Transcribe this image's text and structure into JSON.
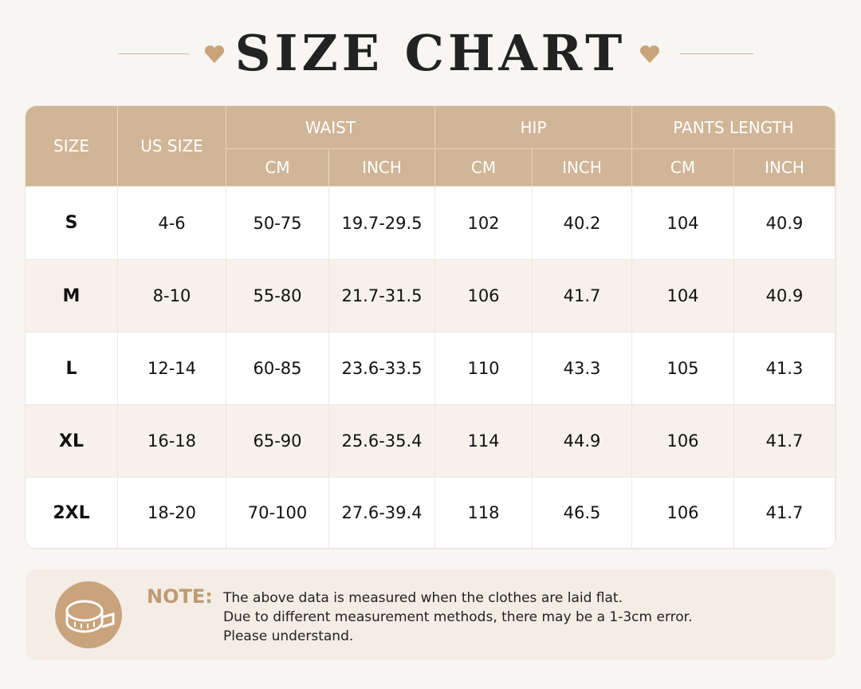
{
  "header": {
    "title": "SIZE CHART"
  },
  "table": {
    "columns": [
      {
        "label": "SIZE"
      },
      {
        "label": "US SIZE"
      },
      {
        "label": "WAIST",
        "sub": [
          "CM",
          "INCH"
        ]
      },
      {
        "label": "HIP",
        "sub": [
          "CM",
          "INCH"
        ]
      },
      {
        "label": "PANTS LENGTH",
        "sub": [
          "CM",
          "INCH"
        ]
      }
    ],
    "rows": [
      [
        "S",
        "4-6",
        "50-75",
        "19.7-29.5",
        "102",
        "40.2",
        "104",
        "40.9"
      ],
      [
        "M",
        "8-10",
        "55-80",
        "21.7-31.5",
        "106",
        "41.7",
        "104",
        "40.9"
      ],
      [
        "L",
        "12-14",
        "60-85",
        "23.6-33.5",
        "110",
        "43.3",
        "105",
        "41.3"
      ],
      [
        "XL",
        "16-18",
        "65-90",
        "25.6-35.4",
        "114",
        "44.9",
        "106",
        "41.7"
      ],
      [
        "2XL",
        "18-20",
        "70-100",
        "27.6-39.4",
        "118",
        "46.5",
        "106",
        "41.7"
      ]
    ]
  },
  "note": {
    "label": "NOTE:",
    "lines": [
      "The above data is measured when the clothes are laid flat.",
      "Due to different measurement methods, there may be a 1-3cm error.",
      "Please understand."
    ]
  }
}
